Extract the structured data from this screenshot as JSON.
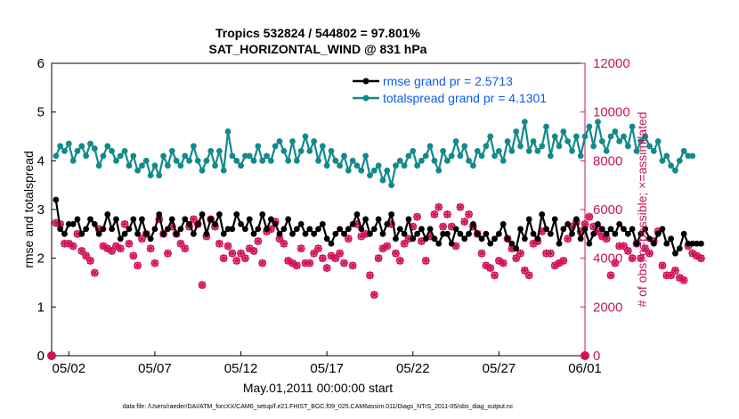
{
  "chart_data": {
    "type": "line",
    "title_line1": "Tropics 532824 / 544802 = 97.801%",
    "title_line2": "SAT_HORIZONTAL_WIND @ 831 hPa",
    "xlabel": "May.01,2011 00:00:00 start",
    "ylabel_left": "rmse and totalspread",
    "ylabel_right": "# of obs: o=possible; ×=assimilated",
    "footer": "data file: /Users/raeder/DAI/ATM_forcXX/CAM6_setup/f.e21.FHIST_BGC.f09_025.CAM6assim.011/Diags_NTrS_2011-05/obs_diag_output.nc",
    "xlim": [
      0,
      31
    ],
    "x_ticks": [
      1,
      6,
      11,
      16,
      21,
      26,
      31
    ],
    "x_tick_labels": [
      "05/02",
      "05/07",
      "05/12",
      "05/17",
      "05/22",
      "05/27",
      "06/01"
    ],
    "ylim_left": [
      0,
      6
    ],
    "y_ticks_left": [
      0,
      1,
      2,
      3,
      4,
      5,
      6
    ],
    "ylim_right": [
      0,
      12000
    ],
    "y_ticks_right": [
      0,
      2000,
      4000,
      6000,
      8000,
      10000,
      12000
    ],
    "legend": [
      "rmse grand pr = 2.5713",
      "totalspread grand pr = 4.1301"
    ],
    "colors": {
      "rmse": "#000000",
      "spread": "#138A8A",
      "obs": "#D0105A",
      "right_axis": "#C8185F",
      "legend_text": "#0B5CEB"
    },
    "series": [
      {
        "name": "rmse",
        "x_start": 0.25,
        "x_step": 0.25,
        "values": [
          3.2,
          2.6,
          2.5,
          2.7,
          2.7,
          2.8,
          2.5,
          2.6,
          2.8,
          2.7,
          2.5,
          2.6,
          2.9,
          2.6,
          2.8,
          2.4,
          2.5,
          2.6,
          2.8,
          2.5,
          2.8,
          2.5,
          2.4,
          2.6,
          2.9,
          2.5,
          2.6,
          2.8,
          2.5,
          2.6,
          2.8,
          2.7,
          2.5,
          2.7,
          2.9,
          2.5,
          2.8,
          2.7,
          2.9,
          2.5,
          2.6,
          2.6,
          2.9,
          2.7,
          2.6,
          2.8,
          2.5,
          2.6,
          2.9,
          2.6,
          2.8,
          2.7,
          2.5,
          2.6,
          2.8,
          2.5,
          2.6,
          2.7,
          2.5,
          2.6,
          2.5,
          2.6,
          2.7,
          2.4,
          2.3,
          2.5,
          2.6,
          2.5,
          2.6,
          2.7,
          2.9,
          2.6,
          2.8,
          2.5,
          2.6,
          2.8,
          2.5,
          2.7,
          2.9,
          2.4,
          2.6,
          2.5,
          2.8,
          2.4,
          2.5,
          2.6,
          2.4,
          2.6,
          2.4,
          2.3,
          2.5,
          2.5,
          2.3,
          2.6,
          2.5,
          2.4,
          2.5,
          2.7,
          2.5,
          2.4,
          2.5,
          2.3,
          2.4,
          2.5,
          2.7,
          2.4,
          2.3,
          2.2,
          2.6,
          2.4,
          2.8,
          2.5,
          2.4,
          2.9,
          2.6,
          2.5,
          2.8,
          2.3,
          2.6,
          2.7,
          2.5,
          2.8,
          2.4,
          2.6,
          2.3,
          2.5,
          2.7,
          2.6,
          2.5,
          2.6,
          2.5,
          2.7,
          2.6,
          2.5,
          2.6,
          2.3,
          2.5,
          2.6,
          2.4,
          2.3,
          2.5,
          2.6,
          2.3,
          2.4,
          2.1,
          2.2,
          2.5,
          2.3,
          2.3,
          2.3,
          2.3
        ]
      },
      {
        "name": "totalspread",
        "x_start": 0.25,
        "x_step": 0.25,
        "values": [
          4.1,
          4.3,
          4.2,
          4.35,
          4.0,
          4.2,
          4.3,
          4.1,
          4.35,
          4.25,
          3.9,
          4.1,
          4.3,
          4.2,
          4.0,
          4.1,
          4.2,
          3.9,
          4.1,
          3.8,
          3.9,
          4.0,
          3.7,
          3.9,
          3.7,
          4.1,
          3.9,
          4.2,
          4.0,
          3.9,
          4.1,
          4.0,
          4.3,
          4.0,
          3.8,
          4.0,
          4.2,
          3.9,
          4.2,
          3.8,
          4.6,
          4.1,
          4.0,
          3.9,
          4.1,
          4.1,
          4.0,
          4.3,
          4.0,
          4.1,
          4.0,
          4.3,
          4.4,
          4.2,
          4.0,
          4.4,
          4.0,
          4.2,
          4.5,
          4.2,
          4.4,
          4.0,
          4.3,
          3.9,
          4.2,
          4.0,
          3.9,
          4.1,
          3.8,
          4.0,
          3.9,
          3.8,
          4.1,
          3.7,
          3.8,
          3.9,
          3.6,
          3.8,
          3.5,
          3.9,
          4.0,
          3.9,
          4.1,
          4.2,
          3.9,
          4.0,
          4.1,
          4.3,
          4.0,
          3.8,
          4.2,
          4.0,
          4.1,
          4.4,
          4.1,
          4.3,
          4.0,
          3.9,
          4.2,
          4.1,
          4.3,
          4.5,
          4.1,
          4.2,
          4.0,
          4.4,
          4.2,
          4.6,
          4.3,
          4.8,
          4.2,
          4.4,
          4.2,
          4.3,
          4.7,
          4.1,
          4.5,
          4.3,
          4.6,
          4.4,
          4.2,
          4.5,
          4.1,
          4.5,
          4.7,
          4.3,
          4.8,
          4.4,
          4.2,
          4.5,
          4.6,
          4.4,
          4.5,
          4.3,
          4.7,
          4.2,
          4.4,
          4.5,
          4.3,
          4.2,
          4.4,
          4.0,
          4.1,
          3.9,
          3.8,
          4.0,
          4.2,
          4.1,
          4.1
        ]
      },
      {
        "name": "obs_possible",
        "axis": "right",
        "x_start": 0.25,
        "x_step": 0.25,
        "values": [
          5450,
          5400,
          4600,
          4600,
          4500,
          5000,
          4300,
          4100,
          3900,
          3400,
          5200,
          4500,
          4400,
          4300,
          4500,
          4400,
          5400,
          4600,
          4100,
          3700,
          4800,
          5000,
          4400,
          3800,
          5600,
          5000,
          4200,
          5300,
          5000,
          4600,
          4400,
          5300,
          5600,
          5400,
          2900,
          4900,
          5600,
          5300,
          4600,
          4000,
          4500,
          4200,
          3900,
          4200,
          4000,
          4400,
          4300,
          4700,
          3800,
          5100,
          5200,
          5500,
          4800,
          4600,
          3900,
          3800,
          3700,
          4400,
          3800,
          3800,
          4200,
          4400,
          4000,
          3600,
          4100,
          4000,
          4200,
          3800,
          4800,
          3700,
          5400,
          4900,
          5000,
          3300,
          2500,
          4000,
          4400,
          4500,
          5400,
          4200,
          3900,
          4600,
          4800,
          5300,
          5700,
          4700,
          3900,
          4900,
          5800,
          6100,
          5300,
          5800,
          5300,
          4500,
          6100,
          5500,
          5800,
          5300,
          5000,
          4200,
          3700,
          3600,
          3300,
          3900,
          3800,
          4800,
          4400,
          4000,
          4200,
          3500,
          3300,
          4600,
          4700,
          5100,
          4200,
          4200,
          3700,
          3800,
          3900,
          4800,
          5300,
          5500,
          5100,
          5400,
          5700,
          5300,
          5100,
          4900,
          4800,
          3300,
          3800,
          4500,
          4500,
          4300,
          4000,
          4600,
          4000,
          4400,
          4200,
          4700,
          5100,
          3700,
          3300,
          3300,
          3500,
          3200,
          3100,
          4500,
          4200,
          4100,
          4000
        ]
      },
      {
        "name": "obs_assimilated",
        "axis": "right",
        "x_start": 0.25,
        "x_step": 0.25,
        "values": [
          5450,
          5400,
          4600,
          4600,
          4500,
          5000,
          4300,
          4100,
          3900,
          3400,
          5200,
          4500,
          4400,
          4300,
          4500,
          4400,
          5400,
          4600,
          4100,
          3700,
          4800,
          5000,
          4400,
          3800,
          5600,
          5000,
          4200,
          5300,
          5000,
          4600,
          4400,
          5300,
          5600,
          5400,
          2900,
          4900,
          5600,
          5300,
          4600,
          4000,
          4500,
          4200,
          3900,
          4200,
          4000,
          4400,
          4300,
          4700,
          3800,
          5100,
          5200,
          5500,
          4800,
          4600,
          3900,
          3800,
          3700,
          4400,
          3800,
          3800,
          4200,
          4400,
          4000,
          3600,
          4100,
          4000,
          4200,
          3800,
          4800,
          3700,
          5400,
          4900,
          5000,
          3300,
          2500,
          4000,
          4400,
          4500,
          5400,
          4200,
          3900,
          4600,
          4800,
          5300,
          5700,
          4700,
          3900,
          4900,
          5800,
          6100,
          5300,
          5800,
          5300,
          4500,
          6100,
          5500,
          5800,
          5300,
          5000,
          4200,
          3700,
          3600,
          3300,
          3900,
          3800,
          4800,
          4400,
          4000,
          4200,
          3500,
          3300,
          4600,
          4700,
          5100,
          4200,
          4200,
          3700,
          3800,
          3900,
          4800,
          5300,
          5500,
          5100,
          5400,
          5700,
          5300,
          5100,
          4900,
          4800,
          3300,
          3800,
          4500,
          4500,
          4300,
          4000,
          4600,
          4000,
          4400,
          4200,
          4700,
          5100,
          3700,
          3300,
          3300,
          3500,
          3200,
          3100,
          4500,
          4200,
          4100,
          4000
        ]
      }
    ]
  }
}
